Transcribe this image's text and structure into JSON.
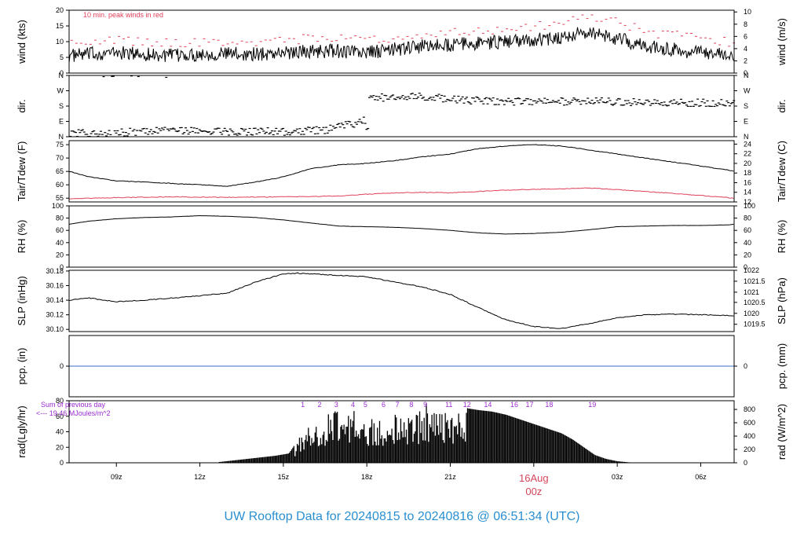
{
  "footer": "UW Rooftop Data for 20240815  to  20240816 @ 06:51:34  (UTC)",
  "colors": {
    "trace": "#000000",
    "peak": "#e0405a",
    "dew": "#e0405a",
    "pcp_line": "#3b6fc4",
    "rad_notes": "#9a2bd0",
    "footer": "#2a8fd0",
    "date_label": "#d6455a"
  },
  "x_axis": {
    "tick_labels": [
      "09z",
      "12z",
      "15z",
      "18z",
      "21z",
      "03z",
      "06z"
    ],
    "tick_hours": [
      9,
      12,
      15,
      18,
      21,
      27,
      30
    ],
    "range_hours": [
      7.3,
      31.2
    ],
    "date_label_line1": "16Aug",
    "date_label_line2": "00z",
    "date_label_hour": 24
  },
  "chart_data": [
    {
      "type": "line",
      "id": "wind",
      "ylabel_left": "wind (kts)",
      "ylabel_right": "wind (m/s)",
      "ylim": [
        0,
        20
      ],
      "yticks_left": [
        "0",
        "5",
        "10",
        "15",
        "20"
      ],
      "ytick_values_left": [
        0,
        5,
        10,
        15,
        20
      ],
      "yticks_right": [
        "0",
        "2",
        "4",
        "6",
        "8",
        "10"
      ],
      "ytick_values_right": [
        0,
        3.89,
        7.78,
        11.66,
        15.55,
        19.44
      ],
      "annotation": "10 min. peak winds in red",
      "series": [
        {
          "name": "wind speed",
          "x": [
            7.3,
            8,
            9,
            10,
            11,
            12,
            13,
            14,
            15,
            16,
            17,
            18,
            19,
            20,
            21,
            22,
            23,
            24,
            25,
            26,
            27,
            28,
            29,
            30,
            31,
            31.2
          ],
          "y": [
            5.5,
            6,
            6.5,
            6,
            5.5,
            6,
            6.2,
            6,
            6.5,
            7,
            7,
            6.5,
            7.5,
            8.5,
            9,
            9.5,
            10,
            10.5,
            11.5,
            13,
            11,
            8.5,
            7.5,
            6.5,
            6,
            6
          ]
        },
        {
          "name": "peak winds",
          "x": [
            7.3,
            8,
            9,
            10,
            11,
            12,
            13,
            14,
            15,
            16,
            17,
            18,
            19,
            20,
            21,
            22,
            23,
            24,
            25,
            26,
            27,
            28,
            29,
            30,
            31,
            31.2
          ],
          "y": [
            9.5,
            10,
            10.5,
            10,
            9.5,
            10,
            10.2,
            10,
            10.5,
            11,
            11,
            10.5,
            11.5,
            12.5,
            13,
            13.5,
            14,
            15,
            16,
            18,
            16,
            13,
            12,
            11,
            10,
            10
          ]
        }
      ]
    },
    {
      "type": "scatter",
      "id": "dir",
      "ylabel_left": "dir.",
      "ylabel_right": "dir.",
      "ylim": [
        0,
        360
      ],
      "yticks_left": [
        "N",
        "E",
        "S",
        "W",
        "N"
      ],
      "yticks_right": [
        "N",
        "E",
        "S",
        "W",
        "N"
      ],
      "ytick_values": [
        0,
        90,
        180,
        270,
        360
      ],
      "series": [
        {
          "name": "direction",
          "x": [
            7.3,
            9,
            11,
            13,
            15,
            16.5,
            17.3,
            17.8,
            18,
            18.5,
            20,
            22,
            24,
            26,
            28,
            30,
            31.2
          ],
          "y": [
            20,
            25,
            35,
            30,
            30,
            40,
            70,
            90,
            220,
            230,
            235,
            210,
            205,
            210,
            200,
            200,
            195
          ]
        }
      ]
    },
    {
      "type": "line",
      "id": "temp",
      "ylabel_left": "Tair/Tdew (F)",
      "ylabel_right": "Tair/Tdew (C)",
      "ylim": [
        53.6,
        76.5
      ],
      "yticks_left": [
        "55",
        "60",
        "65",
        "70",
        "75"
      ],
      "ytick_values_left": [
        55,
        60,
        65,
        70,
        75
      ],
      "yticks_right": [
        "12",
        "14",
        "16",
        "18",
        "20",
        "22",
        "24"
      ],
      "ytick_values_right": [
        53.6,
        57.2,
        60.8,
        64.4,
        68,
        71.6,
        75.2
      ],
      "series": [
        {
          "name": "Tair",
          "x": [
            7.3,
            8,
            9,
            10,
            11,
            12,
            13,
            14,
            15,
            16,
            17,
            18,
            19,
            20,
            21,
            22,
            23,
            24,
            25,
            26,
            27,
            28,
            29,
            30,
            31,
            31.2
          ],
          "y": [
            65,
            63,
            61.5,
            61,
            60.5,
            60,
            59.5,
            61,
            63,
            66,
            67.5,
            68,
            69,
            70.5,
            71.5,
            73.5,
            74.5,
            75,
            74.5,
            73,
            71.5,
            70,
            68.5,
            67,
            65.5,
            65
          ]
        },
        {
          "name": "Tdew",
          "x": [
            7.3,
            9,
            11,
            13,
            15,
            17,
            18,
            19,
            20,
            21,
            22,
            23,
            24,
            25,
            26,
            27,
            28,
            29,
            30,
            31,
            31.2
          ],
          "y": [
            54.8,
            55.2,
            55.5,
            55.3,
            55.5,
            55.8,
            56.5,
            57,
            57.2,
            57,
            57.5,
            58,
            58.3,
            58.5,
            58.8,
            58.2,
            57.5,
            56.8,
            56,
            55.2,
            55
          ]
        }
      ]
    },
    {
      "type": "line",
      "id": "rh",
      "ylabel_left": "RH (%)",
      "ylabel_right": "RH (%)",
      "ylim": [
        0,
        100
      ],
      "yticks_left": [
        "0",
        "20",
        "40",
        "60",
        "80",
        "100"
      ],
      "yticks_right": [
        "0",
        "20",
        "40",
        "60",
        "80",
        "100"
      ],
      "ytick_values": [
        0,
        20,
        40,
        60,
        80,
        100
      ],
      "series": [
        {
          "name": "RH",
          "x": [
            7.3,
            8,
            9,
            10,
            11,
            12,
            13,
            14,
            15,
            16,
            17,
            18,
            19,
            20,
            21,
            22,
            23,
            24,
            25,
            26,
            27,
            28,
            29,
            30,
            31,
            31.2
          ],
          "y": [
            70,
            75,
            79,
            81,
            82,
            84,
            83,
            81,
            77,
            72,
            67,
            66,
            65,
            63,
            60,
            56,
            54,
            55,
            57,
            61,
            66,
            67,
            68,
            68,
            69,
            70
          ]
        }
      ]
    },
    {
      "type": "line",
      "id": "slp",
      "ylabel_left": "SLP (inHg)",
      "ylabel_right": "SLP (hPa)",
      "ylim": [
        30.097,
        30.181
      ],
      "yticks_left": [
        "30.10",
        "30.12",
        "30.14",
        "30.16",
        "30.18"
      ],
      "ytick_values_left": [
        30.1,
        30.12,
        30.14,
        30.16,
        30.18
      ],
      "yticks_right": [
        "1019.5",
        "1020",
        "1020.5",
        "1021",
        "1021.5",
        "1022"
      ],
      "ytick_values_right": [
        30.107,
        30.122,
        30.137,
        30.151,
        30.166,
        30.181
      ],
      "series": [
        {
          "name": "SLP",
          "x": [
            7.3,
            8,
            9,
            10,
            11,
            12,
            13,
            14,
            15,
            15.5,
            16,
            17,
            18,
            19,
            20,
            21,
            22,
            23,
            24,
            25,
            26,
            27,
            28,
            29,
            30,
            31,
            31.2
          ],
          "y": [
            30.14,
            30.143,
            30.138,
            30.14,
            30.143,
            30.146,
            30.15,
            30.165,
            30.176,
            30.177,
            30.176,
            30.174,
            30.172,
            30.165,
            30.158,
            30.148,
            30.13,
            30.113,
            30.104,
            30.101,
            30.108,
            30.116,
            30.12,
            30.121,
            30.12,
            30.119,
            30.118
          ]
        }
      ]
    },
    {
      "type": "line",
      "id": "pcp",
      "ylabel_left": "pcp. (in)",
      "ylabel_right": "pcp. (mm)",
      "ylim": [
        -1,
        1
      ],
      "yticks_left": [
        "0"
      ],
      "yticks_right": [
        "0"
      ],
      "ytick_values": [
        0
      ],
      "series": [
        {
          "name": "precip",
          "x": [
            7.3,
            31.2
          ],
          "y": [
            0,
            0
          ]
        }
      ]
    },
    {
      "type": "bar",
      "id": "rad",
      "ylabel_left": "rad(Lgly/hr)",
      "ylabel_right": "rad (W/m^2)",
      "ylim": [
        0,
        80
      ],
      "yticks_left": [
        "0",
        "20",
        "40",
        "60",
        "80"
      ],
      "ytick_values_left": [
        0,
        20,
        40,
        60,
        80
      ],
      "yticks_right": [
        "0",
        "200",
        "400",
        "600",
        "800"
      ],
      "ytick_values_right": [
        0,
        17.2,
        34.4,
        51.6,
        68.8
      ],
      "note_line1": "Sum of previous day",
      "note_line2": "<--- 19.46 MJoules/m^2",
      "hour_labels": [
        "1",
        "2",
        "3",
        "4",
        "5",
        "6",
        "7",
        "8",
        "9",
        "11",
        "12",
        "14",
        "16",
        "17",
        "18",
        "19"
      ],
      "hour_label_positions": [
        15.7,
        16.3,
        16.9,
        17.5,
        17.95,
        18.6,
        19.1,
        19.6,
        20.1,
        20.95,
        21.6,
        22.35,
        23.3,
        23.85,
        24.55,
        26.1
      ],
      "series": [
        {
          "name": "solar radiation",
          "x": [
            12.7,
            13.2,
            13.7,
            14.2,
            14.7,
            15.2,
            15.5,
            15.9,
            16.3,
            16.7,
            17.1,
            17.4,
            17.6,
            18.0,
            18.3,
            18.7,
            19.1,
            19.5,
            19.8,
            20.1,
            20.4,
            20.8,
            21.2,
            21.5,
            21.65,
            22.0,
            22.5,
            23.0,
            23.5,
            24.0,
            24.5,
            25.0,
            25.4,
            25.8,
            26.2,
            26.6,
            27.0,
            27.3,
            27.6
          ],
          "y": [
            1,
            3,
            5,
            7,
            9,
            12,
            28,
            45,
            55,
            63,
            65,
            70,
            62,
            48,
            65,
            55,
            60,
            56,
            67,
            75,
            70,
            65,
            58,
            72,
            70,
            68,
            66,
            62,
            56,
            50,
            44,
            38,
            30,
            20,
            10,
            5,
            2,
            1,
            0
          ]
        }
      ]
    }
  ]
}
